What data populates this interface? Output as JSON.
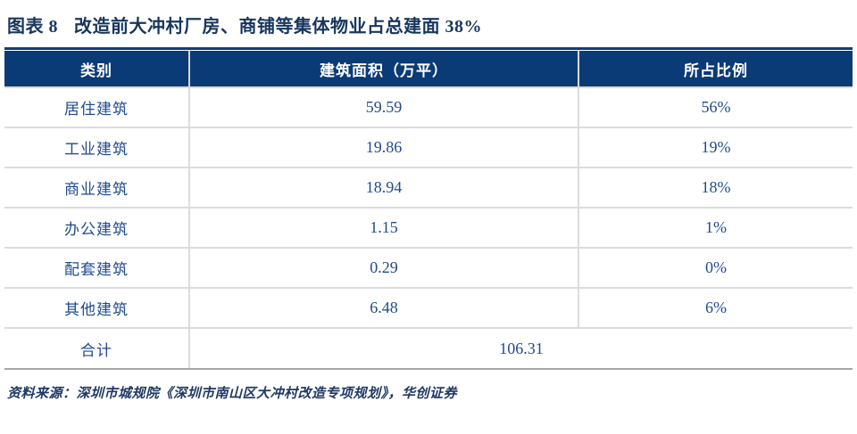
{
  "figure": {
    "label": "图表 8",
    "title": "改造前大冲村厂房、商铺等集体物业占总建面 38%"
  },
  "table": {
    "columns": [
      "类别",
      "建筑面积（万平）",
      "所占比例"
    ],
    "rows": [
      {
        "category": "居住建筑",
        "area": "59.59",
        "share": "56%"
      },
      {
        "category": "工业建筑",
        "area": "19.86",
        "share": "19%"
      },
      {
        "category": "商业建筑",
        "area": "18.94",
        "share": "18%"
      },
      {
        "category": "办公建筑",
        "area": "1.15",
        "share": "1%"
      },
      {
        "category": "配套建筑",
        "area": "0.29",
        "share": "0%"
      },
      {
        "category": "其他建筑",
        "area": "6.48",
        "share": "6%"
      }
    ],
    "total": {
      "label": "合计",
      "value": "106.31"
    }
  },
  "source": "资料来源：深圳市城规院《深圳市南山区大冲村改造专项规划》，华创证券",
  "colors": {
    "header_bg": "#0b3b76",
    "header_text": "#ffffff",
    "title_text": "#17365d",
    "body_text": "#1f4a8f",
    "table_top_border": "#123c74",
    "row_divider": "#dcdcdc",
    "bottom_border": "#a6a6a6"
  }
}
